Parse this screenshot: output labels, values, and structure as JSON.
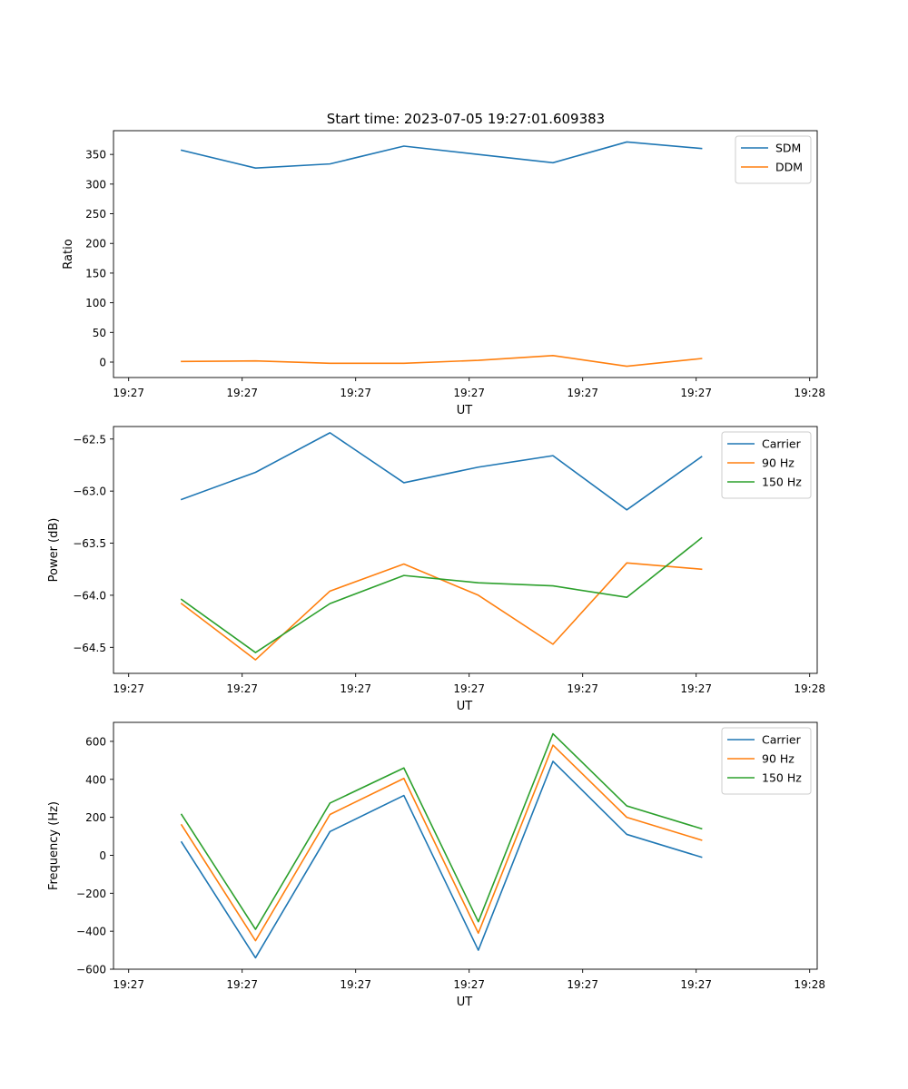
{
  "figure": {
    "title": "Start time: 2023-07-05 19:27:01.609383"
  },
  "chart_data": [
    {
      "type": "line",
      "xlabel": "UT",
      "ylabel": "Ratio",
      "xlim": [
        -0.0167,
        0.7583
      ],
      "ylim": [
        -26,
        390
      ],
      "x_ticks": [
        0,
        0.125,
        0.25,
        0.375,
        0.5,
        0.625,
        0.75
      ],
      "x_tick_labels": [
        "19:27",
        "19:27",
        "19:27",
        "19:27",
        "19:27",
        "19:27",
        "19:28"
      ],
      "y_ticks": [
        0,
        50,
        100,
        150,
        200,
        250,
        300,
        350
      ],
      "y_tick_labels": [
        "0",
        "50",
        "100",
        "150",
        "200",
        "250",
        "300",
        "350"
      ],
      "x": [
        0.0582,
        0.1397,
        0.2217,
        0.3031,
        0.3851,
        0.4673,
        0.5486,
        0.6309
      ],
      "series": [
        {
          "name": "SDM",
          "color": "#1f77b4",
          "values": [
            357,
            327,
            334,
            364,
            350,
            336,
            371,
            360
          ]
        },
        {
          "name": "DDM",
          "color": "#ff7f0e",
          "values": [
            1,
            2,
            -2,
            -2,
            3,
            11,
            -7,
            6
          ]
        }
      ],
      "legend": "top-right"
    },
    {
      "type": "line",
      "xlabel": "UT",
      "ylabel": "Power (dB)",
      "xlim": [
        -0.0167,
        0.7583
      ],
      "ylim": [
        -64.75,
        -62.38
      ],
      "x_ticks": [
        0,
        0.125,
        0.25,
        0.375,
        0.5,
        0.625,
        0.75
      ],
      "x_tick_labels": [
        "19:27",
        "19:27",
        "19:27",
        "19:27",
        "19:27",
        "19:27",
        "19:28"
      ],
      "y_ticks": [
        -64.5,
        -64.0,
        -63.5,
        -63.0,
        -62.5
      ],
      "y_tick_labels": [
        "−64.5",
        "−64.0",
        "−63.5",
        "−63.0",
        "−62.5"
      ],
      "x": [
        0.0582,
        0.1397,
        0.2217,
        0.3031,
        0.3851,
        0.4673,
        0.5486,
        0.6309
      ],
      "series": [
        {
          "name": "Carrier",
          "color": "#1f77b4",
          "values": [
            -63.08,
            -62.82,
            -62.44,
            -62.92,
            -62.77,
            -62.66,
            -63.18,
            -62.67
          ]
        },
        {
          "name": "90 Hz",
          "color": "#ff7f0e",
          "values": [
            -64.08,
            -64.62,
            -63.96,
            -63.7,
            -64.0,
            -64.47,
            -63.69,
            -63.75
          ]
        },
        {
          "name": "150 Hz",
          "color": "#2ca02c",
          "values": [
            -64.04,
            -64.55,
            -64.08,
            -63.81,
            -63.88,
            -63.91,
            -64.02,
            -63.45
          ]
        }
      ],
      "legend": "top-right"
    },
    {
      "type": "line",
      "xlabel": "UT",
      "ylabel": "Frequency (Hz)",
      "xlim": [
        -0.0167,
        0.7583
      ],
      "ylim": [
        -600,
        700
      ],
      "x_ticks": [
        0,
        0.125,
        0.25,
        0.375,
        0.5,
        0.625,
        0.75
      ],
      "x_tick_labels": [
        "19:27",
        "19:27",
        "19:27",
        "19:27",
        "19:27",
        "19:27",
        "19:28"
      ],
      "y_ticks": [
        -600,
        -400,
        -200,
        0,
        200,
        400,
        600
      ],
      "y_tick_labels": [
        "−600",
        "−400",
        "−200",
        "0",
        "200",
        "400",
        "600"
      ],
      "x": [
        0.0582,
        0.1397,
        0.2217,
        0.3031,
        0.3851,
        0.4673,
        0.5486,
        0.6309
      ],
      "series": [
        {
          "name": "Carrier",
          "color": "#1f77b4",
          "values": [
            70,
            -540,
            125,
            315,
            -500,
            495,
            110,
            -10
          ]
        },
        {
          "name": "90 Hz",
          "color": "#ff7f0e",
          "values": [
            160,
            -450,
            215,
            405,
            -410,
            580,
            200,
            80
          ]
        },
        {
          "name": "150 Hz",
          "color": "#2ca02c",
          "values": [
            215,
            -390,
            275,
            460,
            -350,
            640,
            260,
            140
          ]
        }
      ],
      "legend": "top-right"
    }
  ]
}
